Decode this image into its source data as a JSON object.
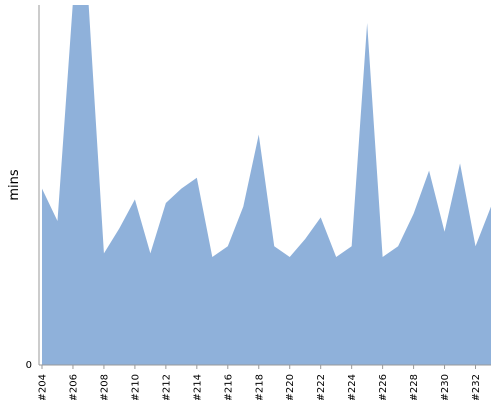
{
  "chart_data": {
    "type": "area",
    "title": "",
    "xlabel": "",
    "ylabel": "mins",
    "ylim": [
      0,
      100
    ],
    "y_ticks": [
      "0"
    ],
    "grid": false,
    "legend": "none",
    "x": [
      "#204",
      "#205",
      "#206",
      "#207",
      "#208",
      "#209",
      "#210",
      "#211",
      "#212",
      "#213",
      "#214",
      "#215",
      "#216",
      "#217",
      "#218",
      "#219",
      "#220",
      "#221",
      "#222",
      "#223",
      "#224",
      "#225",
      "#226",
      "#227",
      "#228",
      "#229",
      "#230",
      "#231",
      "#232",
      "#233"
    ],
    "x_tick_labels": [
      "#204",
      "#206",
      "#208",
      "#210",
      "#212",
      "#214",
      "#216",
      "#218",
      "#220",
      "#222",
      "#224",
      "#226",
      "#228",
      "#230",
      "#232"
    ],
    "series": [
      {
        "values": [
          49,
          40,
          101,
          101,
          31,
          38,
          46,
          31,
          45,
          49,
          52,
          30,
          33,
          44,
          64,
          33,
          30,
          35,
          41,
          30,
          33,
          95,
          30,
          33,
          42,
          54,
          37,
          56,
          33,
          44
        ],
        "color": "#8fb1da"
      }
    ],
    "axis_color": "#999999"
  }
}
